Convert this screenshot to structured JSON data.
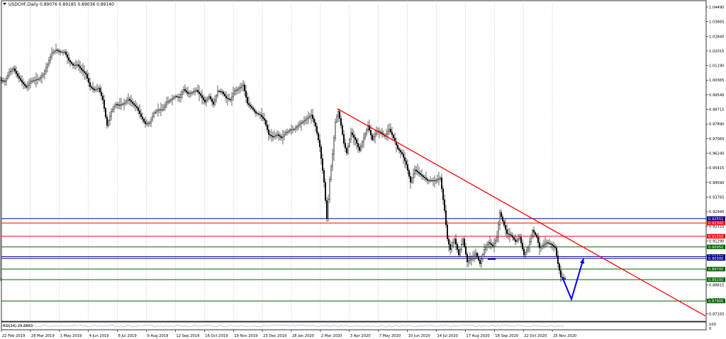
{
  "chart_data": {
    "type": "candlestick",
    "title": "USDCHF,Daily 0.89076 0.89185 0.89036 0.89140",
    "symbol": "USDCHF",
    "timeframe": "Daily",
    "ohlc_last": {
      "open": 0.89076,
      "high": 0.89185,
      "low": 0.89036,
      "close": 0.8914
    },
    "y_ticks": [
      "1.04490",
      "1.03665",
      "1.02840",
      "1.02015",
      "1.01190",
      "1.00365",
      "0.99540",
      "0.98715",
      "0.97890",
      "0.97065",
      "0.96240",
      "0.95415",
      "0.94590",
      "0.93765",
      "0.92940",
      "0.92115",
      "0.91290",
      "0.90465",
      "0.89640",
      "0.88815",
      "0.87990",
      "0.87165"
    ],
    "ylim": [
      0.8675,
      1.0485
    ],
    "x_ticks": [
      "22 Feb 2019",
      "28 Mar 2019",
      "1 May 2019",
      "4 Jun 2019",
      "8 Jul 2019",
      "9 Aug 2019",
      "12 Sep 2019",
      "16 Oct 2019",
      "19 Nov 2019",
      "23 Dec 2019",
      "28 Jan 2020",
      "2 Mar 2020",
      "3 Apr 2020",
      "7 May 2020",
      "10 Jun 2020",
      "14 Jul 2020",
      "17 Aug 2020",
      "18 Sep 2020",
      "22 Oct 2020",
      "25 Nov 2020"
    ],
    "levels": [
      {
        "value": 0.92551,
        "label": "0.92551",
        "color": "#00008b"
      },
      {
        "value": 0.923,
        "label": "0.92300",
        "color": "#ff0000"
      },
      {
        "value": 0.9155,
        "label": "0.91550",
        "color": "#ff0000"
      },
      {
        "value": 0.9095,
        "label": "0.90950",
        "color": "#006400"
      },
      {
        "value": 0.904,
        "label": "0.90400",
        "color": "#00008b"
      },
      {
        "value": 0.903,
        "label": "0.90300",
        "color": "#00008b"
      },
      {
        "value": 0.897,
        "label": "0.89700",
        "color": "#006400"
      },
      {
        "value": 0.891,
        "label": "0.89100",
        "color": "#006400"
      },
      {
        "value": 0.879,
        "label": "0.87900",
        "color": "#006400"
      }
    ],
    "trendline": {
      "color": "#ff0000",
      "start": {
        "bar": 476,
        "value": 0.9875
      },
      "end": {
        "bar": 995,
        "value": 0.8705
      }
    },
    "projection_arrow": {
      "color": "#0000ff",
      "points": [
        {
          "bar": 793,
          "value": 0.8925
        },
        {
          "bar": 806,
          "value": 0.88
        },
        {
          "bar": 823,
          "value": 0.903
        }
      ]
    },
    "series_path": [
      [
        1,
        1.0036
      ],
      [
        8,
        1.003
      ],
      [
        14,
        1.0082
      ],
      [
        20,
        1.0102
      ],
      [
        26,
        1.0058
      ],
      [
        32,
        1.0024
      ],
      [
        38,
        0.9996
      ],
      [
        44,
        1.003
      ],
      [
        50,
        1.0036
      ],
      [
        56,
        1.0044
      ],
      [
        62,
        1.007
      ],
      [
        68,
        1.0125
      ],
      [
        74,
        1.019
      ],
      [
        80,
        1.0207
      ],
      [
        86,
        1.0195
      ],
      [
        92,
        1.0196
      ],
      [
        98,
        1.0148
      ],
      [
        104,
        1.012
      ],
      [
        110,
        1.0124
      ],
      [
        116,
        1.0095
      ],
      [
        122,
        1.007
      ],
      [
        128,
        1.0
      ],
      [
        134,
        0.998
      ],
      [
        140,
        0.9992
      ],
      [
        146,
        0.9925
      ],
      [
        152,
        0.978
      ],
      [
        158,
        0.986
      ],
      [
        164,
        0.99
      ],
      [
        170,
        0.9895
      ],
      [
        176,
        0.9905
      ],
      [
        182,
        0.993
      ],
      [
        188,
        0.9905
      ],
      [
        194,
        0.988
      ],
      [
        200,
        0.983
      ],
      [
        206,
        0.979
      ],
      [
        212,
        0.9795
      ],
      [
        218,
        0.985
      ],
      [
        224,
        0.987
      ],
      [
        230,
        0.987
      ],
      [
        236,
        0.991
      ],
      [
        242,
        0.9926
      ],
      [
        248,
        0.9945
      ],
      [
        254,
        0.994
      ],
      [
        260,
        0.9985
      ],
      [
        266,
        0.996
      ],
      [
        272,
        0.9967
      ],
      [
        278,
        0.998
      ],
      [
        284,
        0.995
      ],
      [
        290,
        0.9913
      ],
      [
        296,
        0.9945
      ],
      [
        302,
        0.99
      ],
      [
        308,
        0.9975
      ],
      [
        314,
        0.997
      ],
      [
        320,
        0.9935
      ],
      [
        326,
        0.9925
      ],
      [
        332,
        0.9975
      ],
      [
        338,
        0.999
      ],
      [
        344,
        1.001
      ],
      [
        350,
        0.9905
      ],
      [
        356,
        0.988
      ],
      [
        362,
        0.985
      ],
      [
        368,
        0.984
      ],
      [
        374,
        0.981
      ],
      [
        380,
        0.973
      ],
      [
        386,
        0.9715
      ],
      [
        392,
        0.973
      ],
      [
        398,
        0.971
      ],
      [
        404,
        0.974
      ],
      [
        410,
        0.9755
      ],
      [
        416,
        0.976
      ],
      [
        422,
        0.9785
      ],
      [
        428,
        0.98
      ],
      [
        434,
        0.982
      ],
      [
        440,
        0.984
      ],
      [
        446,
        0.9776
      ],
      [
        452,
        0.966
      ],
      [
        458,
        0.946
      ],
      [
        462,
        0.9255
      ],
      [
        466,
        0.9475
      ],
      [
        470,
        0.962
      ],
      [
        474,
        0.98
      ],
      [
        478,
        0.986
      ],
      [
        482,
        0.978
      ],
      [
        486,
        0.968
      ],
      [
        490,
        0.9625
      ],
      [
        496,
        0.974
      ],
      [
        502,
        0.97
      ],
      [
        508,
        0.964
      ],
      [
        514,
        0.971
      ],
      [
        520,
        0.978
      ],
      [
        526,
        0.97
      ],
      [
        532,
        0.975
      ],
      [
        538,
        0.974
      ],
      [
        544,
        0.972
      ],
      [
        550,
        0.976
      ],
      [
        556,
        0.971
      ],
      [
        562,
        0.965
      ],
      [
        568,
        0.962
      ],
      [
        574,
        0.956
      ],
      [
        580,
        0.946
      ],
      [
        586,
        0.953
      ],
      [
        592,
        0.951
      ],
      [
        598,
        0.949
      ],
      [
        604,
        0.947
      ],
      [
        610,
        0.947
      ],
      [
        616,
        0.947
      ],
      [
        622,
        0.9485
      ],
      [
        628,
        0.93
      ],
      [
        632,
        0.914
      ],
      [
        636,
        0.908
      ],
      [
        642,
        0.914
      ],
      [
        648,
        0.905
      ],
      [
        654,
        0.914
      ],
      [
        660,
        0.901
      ],
      [
        666,
        0.903
      ],
      [
        672,
        0.906
      ],
      [
        678,
        0.9
      ],
      [
        684,
        0.908
      ],
      [
        690,
        0.912
      ],
      [
        696,
        0.91
      ],
      [
        702,
        0.915
      ],
      [
        706,
        0.929
      ],
      [
        710,
        0.924
      ],
      [
        716,
        0.917
      ],
      [
        722,
        0.916
      ],
      [
        728,
        0.9125
      ],
      [
        734,
        0.915
      ],
      [
        740,
        0.905
      ],
      [
        746,
        0.909
      ],
      [
        752,
        0.919
      ],
      [
        758,
        0.915
      ],
      [
        762,
        0.909
      ],
      [
        766,
        0.91
      ],
      [
        772,
        0.912
      ],
      [
        778,
        0.911
      ],
      [
        784,
        0.909
      ],
      [
        788,
        0.9
      ],
      [
        792,
        0.8925
      ],
      [
        797,
        0.8915
      ]
    ],
    "indicator": {
      "label": "RSI(14) 29.8883",
      "levels": [
        "100",
        "0"
      ],
      "value": 29.8883
    },
    "grid": true,
    "colors": {
      "background": "#ffffff",
      "candles": "#000000",
      "grid": "#c8c8c8"
    }
  }
}
